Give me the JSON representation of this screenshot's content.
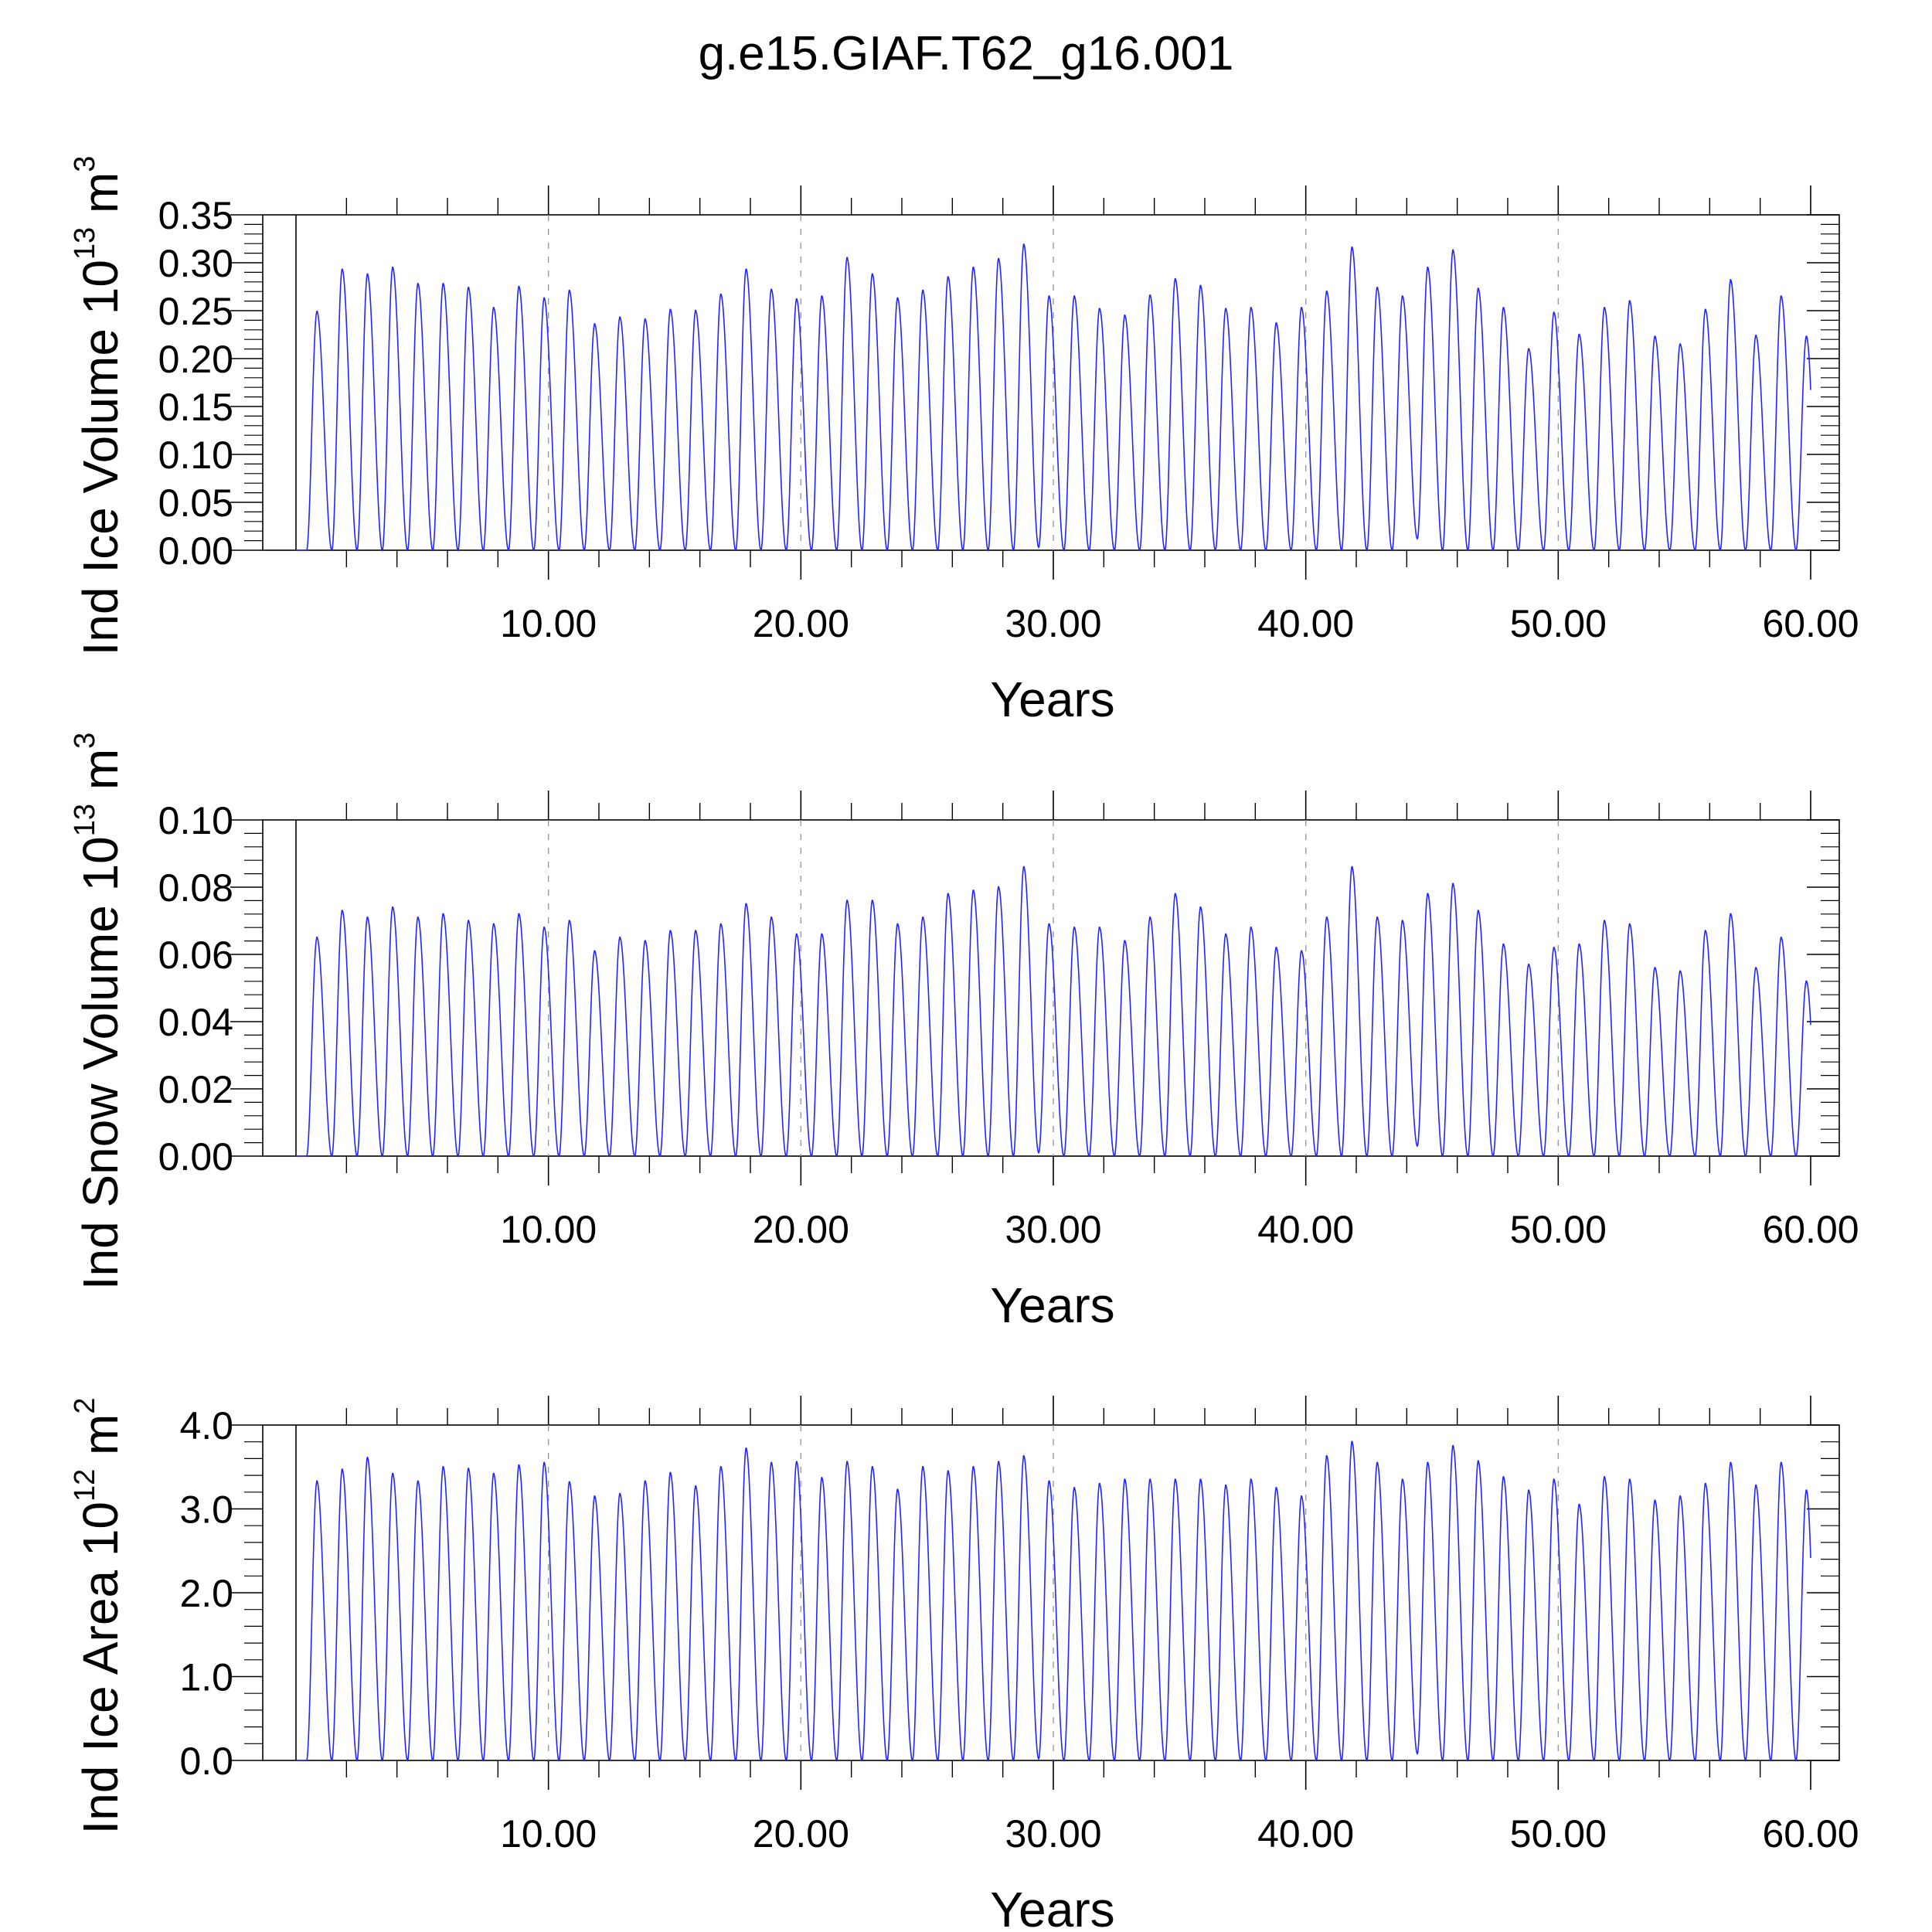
{
  "title": "g.e15.GIAF.T62_g16.001",
  "colors": {
    "series": "#2424ff",
    "axis": "#000000",
    "grid": "#9a9a9a"
  },
  "chart_data": [
    {
      "type": "line",
      "ylabel": "Ind Ice Volume 10",
      "ylabel_exp": "13",
      "ylabel_unit": " m",
      "ylabel_unit_exp": "3",
      "xlabel": "Years",
      "xlim": [
        0,
        60
      ],
      "ylim": [
        0,
        0.35
      ],
      "yticks": [
        "0.00",
        "0.05",
        "0.10",
        "0.15",
        "0.20",
        "0.25",
        "0.30",
        "0.35"
      ],
      "yticks_values": [
        0,
        0.05,
        0.1,
        0.15,
        0.2,
        0.25,
        0.3,
        0.35
      ],
      "xticks": [
        "10.00",
        "20.00",
        "30.00",
        "40.00",
        "50.00",
        "60.00"
      ],
      "xticks_values": [
        10,
        20,
        30,
        40,
        50,
        60
      ],
      "grid": "vertical dashed at labeled x ticks",
      "series": [
        {
          "minima": [
            0,
            0,
            0,
            0,
            0,
            0,
            0,
            0,
            0,
            0,
            0,
            0,
            0,
            0,
            0,
            0,
            0,
            0,
            0,
            0,
            0,
            0,
            0,
            0,
            0,
            0,
            0,
            0,
            0,
            0.003,
            0,
            0,
            0,
            0,
            0,
            0,
            0,
            0,
            0,
            0,
            0,
            0,
            0,
            0,
            0.012,
            0,
            0,
            0,
            0,
            0,
            0,
            0,
            0,
            0,
            0,
            0,
            0,
            0,
            0,
            0
          ],
          "maxima": [
            0.249,
            0.293,
            0.288,
            0.295,
            0.278,
            0.278,
            0.274,
            0.253,
            0.275,
            0.263,
            0.271,
            0.236,
            0.243,
            0.241,
            0.251,
            0.25,
            0.267,
            0.293,
            0.272,
            0.262,
            0.265,
            0.305,
            0.288,
            0.263,
            0.271,
            0.285,
            0.295,
            0.304,
            0.319,
            0.265,
            0.265,
            0.252,
            0.245,
            0.266,
            0.283,
            0.276,
            0.252,
            0.253,
            0.237,
            0.253,
            0.27,
            0.316,
            0.274,
            0.265,
            0.295,
            0.313,
            0.273,
            0.253,
            0.21,
            0.248,
            0.225,
            0.253,
            0.26,
            0.223,
            0.215,
            0.251,
            0.282,
            0.224,
            0.265,
            0.223
          ]
        }
      ]
    },
    {
      "type": "line",
      "ylabel": "Ind Snow Volume 10",
      "ylabel_exp": "13",
      "ylabel_unit": " m",
      "ylabel_unit_exp": "3",
      "xlabel": "Years",
      "xlim": [
        0,
        60
      ],
      "ylim": [
        0,
        0.1
      ],
      "yticks": [
        "0.00",
        "0.02",
        "0.04",
        "0.06",
        "0.08",
        "0.10"
      ],
      "yticks_values": [
        0,
        0.02,
        0.04,
        0.06,
        0.08,
        0.1
      ],
      "xticks": [
        "10.00",
        "20.00",
        "30.00",
        "40.00",
        "50.00",
        "60.00"
      ],
      "xticks_values": [
        10,
        20,
        30,
        40,
        50,
        60
      ],
      "grid": "vertical dashed at labeled x ticks",
      "series": [
        {
          "minima": [
            0,
            0,
            0,
            0,
            0,
            0,
            0,
            0,
            0,
            0,
            0,
            0,
            0,
            0,
            0,
            0,
            0,
            0,
            0,
            0,
            0,
            0,
            0,
            0,
            0,
            0,
            0,
            0,
            0,
            0.001,
            0,
            0,
            0,
            0,
            0,
            0,
            0,
            0,
            0,
            0,
            0,
            0,
            0,
            0,
            0.003,
            0,
            0,
            0,
            0,
            0,
            0,
            0,
            0,
            0,
            0,
            0,
            0,
            0,
            0,
            0
          ],
          "maxima": [
            0.065,
            0.073,
            0.071,
            0.074,
            0.071,
            0.072,
            0.07,
            0.069,
            0.072,
            0.068,
            0.07,
            0.061,
            0.065,
            0.064,
            0.067,
            0.067,
            0.069,
            0.075,
            0.071,
            0.066,
            0.066,
            0.076,
            0.076,
            0.069,
            0.071,
            0.078,
            0.079,
            0.08,
            0.086,
            0.069,
            0.068,
            0.068,
            0.064,
            0.071,
            0.078,
            0.074,
            0.066,
            0.068,
            0.062,
            0.061,
            0.071,
            0.086,
            0.071,
            0.07,
            0.078,
            0.081,
            0.073,
            0.063,
            0.057,
            0.062,
            0.063,
            0.07,
            0.069,
            0.056,
            0.055,
            0.067,
            0.072,
            0.056,
            0.065,
            0.052
          ]
        }
      ]
    },
    {
      "type": "line",
      "ylabel": "Ind Ice Area 10",
      "ylabel_exp": "12",
      "ylabel_unit": " m",
      "ylabel_unit_exp": "2",
      "xlabel": "Years",
      "xlim": [
        0,
        60
      ],
      "ylim": [
        0,
        4
      ],
      "yticks": [
        "0.0",
        "1.0",
        "2.0",
        "3.0",
        "4.0"
      ],
      "yticks_values": [
        0,
        1,
        2,
        3,
        4
      ],
      "xticks": [
        "10.00",
        "20.00",
        "30.00",
        "40.00",
        "50.00",
        "60.00"
      ],
      "xticks_values": [
        10,
        20,
        30,
        40,
        50,
        60
      ],
      "grid": "vertical dashed at labeled x ticks",
      "series": [
        {
          "minima": [
            0,
            0,
            0,
            0,
            0,
            0,
            0,
            0,
            0,
            0,
            0,
            0,
            0,
            0,
            0,
            0,
            0,
            0,
            0,
            0,
            0,
            0,
            0,
            0,
            0,
            0,
            0,
            0,
            0,
            0.02,
            0,
            0,
            0,
            0,
            0,
            0,
            0,
            0,
            0,
            0,
            0,
            0,
            0,
            0,
            0.08,
            0,
            0,
            0,
            0,
            0,
            0,
            0,
            0,
            0,
            0,
            0,
            0,
            0,
            0,
            0
          ],
          "maxima": [
            3.33,
            3.47,
            3.61,
            3.42,
            3.33,
            3.5,
            3.48,
            3.42,
            3.52,
            3.55,
            3.32,
            3.15,
            3.18,
            3.33,
            3.43,
            3.27,
            3.5,
            3.72,
            3.55,
            3.56,
            3.37,
            3.56,
            3.5,
            3.23,
            3.5,
            3.45,
            3.5,
            3.56,
            3.63,
            3.33,
            3.25,
            3.3,
            3.35,
            3.35,
            3.35,
            3.35,
            3.28,
            3.35,
            3.25,
            3.15,
            3.63,
            3.8,
            3.55,
            3.35,
            3.55,
            3.75,
            3.57,
            3.38,
            3.22,
            3.35,
            3.05,
            3.38,
            3.35,
            3.1,
            3.15,
            3.3,
            3.55,
            3.28,
            3.55,
            3.22
          ]
        }
      ]
    }
  ]
}
